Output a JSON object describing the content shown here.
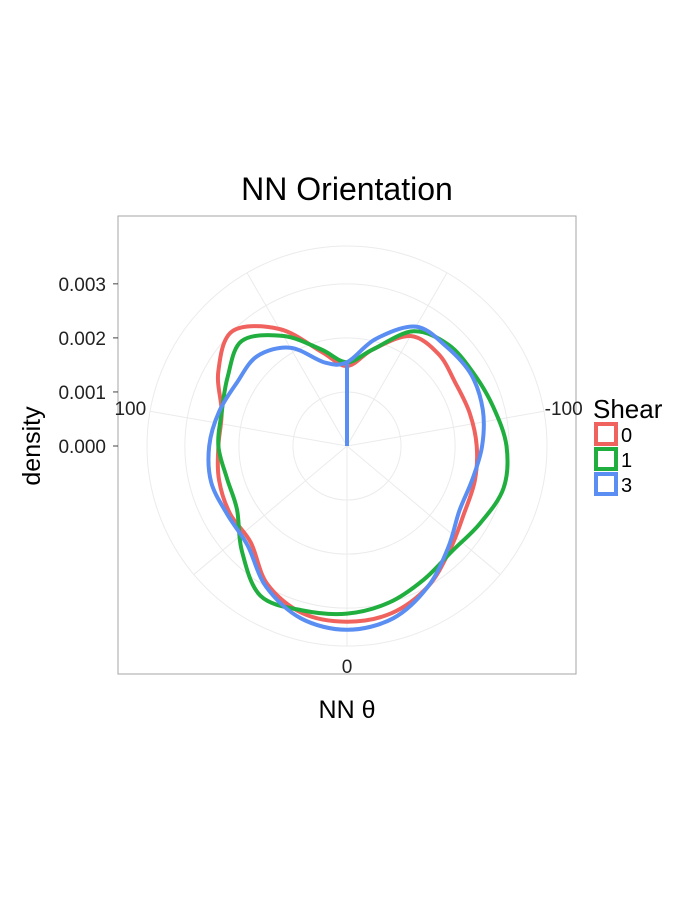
{
  "chart_data": {
    "type": "line",
    "coord": "polar",
    "title": "NN Orientation",
    "xlabel": "NN θ",
    "ylabel": "density",
    "theta_direction": "clockwise",
    "theta_zero": "bottom",
    "theta_ticks": [
      "100",
      "0",
      "-100"
    ],
    "theta_tick_values": [
      100,
      0,
      -100
    ],
    "y_ticks": [
      "0.000",
      "0.001",
      "0.002",
      "0.003"
    ],
    "y_tick_values": [
      0,
      0.001,
      0.002,
      0.003
    ],
    "ylim": [
      0,
      0.0037
    ],
    "grid": true,
    "legend_title": "Shear",
    "legend_position": "right",
    "theta": [
      0,
      15,
      30,
      45,
      60,
      75,
      90,
      105,
      120,
      135,
      150,
      165,
      180,
      -165,
      -150,
      -135,
      -120,
      -105,
      -90,
      -75,
      -60,
      -45,
      -30,
      -15
    ],
    "series": [
      {
        "name": "0",
        "color": "#F0625E",
        "values": [
          0.00325,
          0.0032,
          0.00295,
          0.00252,
          0.0025,
          0.00245,
          0.00238,
          0.0024,
          0.00275,
          0.003,
          0.0025,
          0.0018,
          0.00148,
          0.00185,
          0.00235,
          0.0024,
          0.00232,
          0.00235,
          0.0024,
          0.00245,
          0.0025,
          0.0027,
          0.003,
          0.0032
        ]
      },
      {
        "name": "1",
        "color": "#20AE3F",
        "values": [
          0.0031,
          0.00315,
          0.0032,
          0.00275,
          0.00235,
          0.0023,
          0.00238,
          0.0024,
          0.00255,
          0.00275,
          0.00235,
          0.00185,
          0.00155,
          0.00185,
          0.00245,
          0.00265,
          0.0027,
          0.0028,
          0.00295,
          0.003,
          0.00285,
          0.00275,
          0.00285,
          0.003
        ]
      },
      {
        "name": "3",
        "color": "#5A8EF2",
        "values": [
          0.0034,
          0.0033,
          0.003,
          0.0026,
          0.00255,
          0.0026,
          0.00255,
          0.00245,
          0.00235,
          0.00235,
          0.0021,
          0.0016,
          0.00155,
          0.00205,
          0.00255,
          0.0026,
          0.00265,
          0.0026,
          0.0025,
          0.0024,
          0.0024,
          0.00265,
          0.003,
          0.0033
        ]
      }
    ]
  }
}
